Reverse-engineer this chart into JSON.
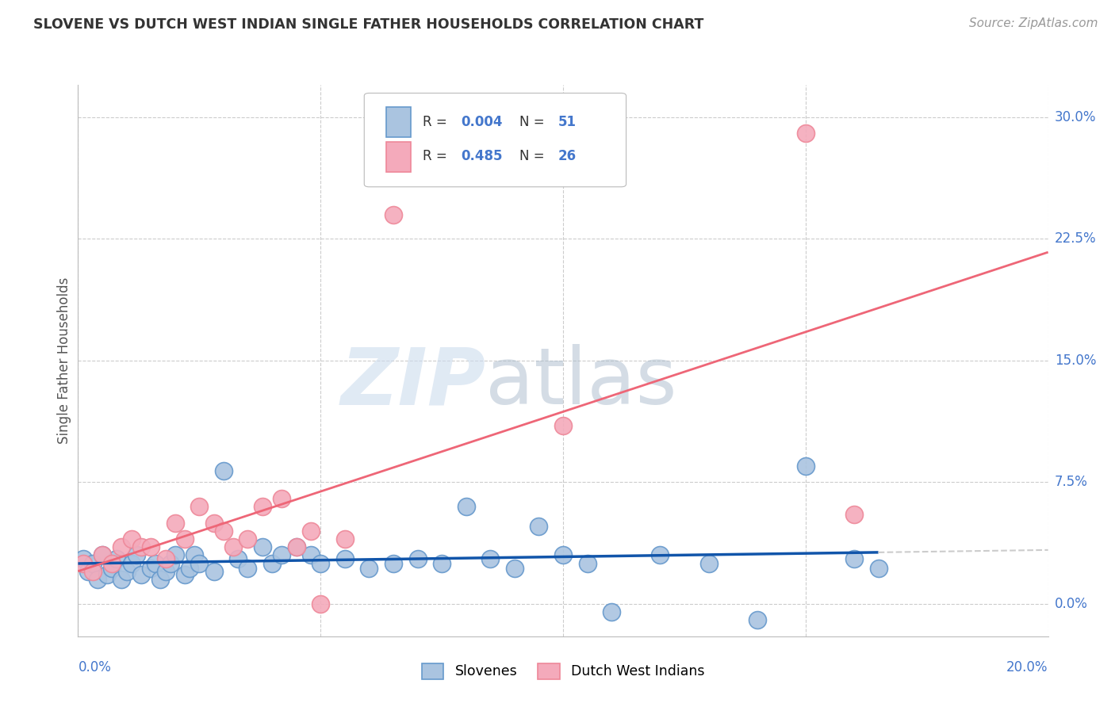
{
  "title": "SLOVENE VS DUTCH WEST INDIAN SINGLE FATHER HOUSEHOLDS CORRELATION CHART",
  "source": "Source: ZipAtlas.com",
  "ylabel": "Single Father Households",
  "ytick_labels": [
    "0.0%",
    "7.5%",
    "15.0%",
    "22.5%",
    "30.0%"
  ],
  "ytick_values": [
    0.0,
    0.075,
    0.15,
    0.225,
    0.3
  ],
  "xlim": [
    0.0,
    0.2
  ],
  "ylim": [
    -0.02,
    0.32
  ],
  "legend_slovene_r": "0.004",
  "legend_slovene_n": "51",
  "legend_dutch_r": "0.485",
  "legend_dutch_n": "26",
  "slovene_color": "#aac4e0",
  "dutch_color": "#f4aabb",
  "slovene_edge_color": "#6699cc",
  "dutch_edge_color": "#ee8899",
  "slovene_line_color": "#1155aa",
  "dutch_line_color": "#ee6677",
  "watermark_zip_color": "#ccdcee",
  "watermark_atlas_color": "#aabbcc",
  "background_color": "#ffffff",
  "grid_color": "#cccccc",
  "title_color": "#333333",
  "source_color": "#999999",
  "axis_label_color": "#555555",
  "tick_label_color": "#4477cc",
  "legend_r_color": "#4477cc",
  "legend_n_color": "#4477cc",
  "slovene_points_x": [
    0.001,
    0.002,
    0.003,
    0.004,
    0.005,
    0.006,
    0.007,
    0.008,
    0.009,
    0.01,
    0.011,
    0.012,
    0.013,
    0.015,
    0.016,
    0.017,
    0.018,
    0.019,
    0.02,
    0.022,
    0.023,
    0.024,
    0.025,
    0.028,
    0.03,
    0.033,
    0.035,
    0.038,
    0.04,
    0.042,
    0.045,
    0.048,
    0.05,
    0.055,
    0.06,
    0.065,
    0.07,
    0.075,
    0.08,
    0.085,
    0.09,
    0.095,
    0.1,
    0.105,
    0.11,
    0.12,
    0.13,
    0.14,
    0.15,
    0.16,
    0.165
  ],
  "slovene_points_y": [
    0.028,
    0.02,
    0.025,
    0.015,
    0.03,
    0.018,
    0.022,
    0.028,
    0.015,
    0.02,
    0.025,
    0.03,
    0.018,
    0.022,
    0.025,
    0.015,
    0.02,
    0.025,
    0.03,
    0.018,
    0.022,
    0.03,
    0.025,
    0.02,
    0.082,
    0.028,
    0.022,
    0.035,
    0.025,
    0.03,
    0.035,
    0.03,
    0.025,
    0.028,
    0.022,
    0.025,
    0.028,
    0.025,
    0.06,
    0.028,
    0.022,
    0.048,
    0.03,
    0.025,
    -0.005,
    0.03,
    0.025,
    -0.01,
    0.085,
    0.028,
    0.022
  ],
  "dutch_points_x": [
    0.001,
    0.003,
    0.005,
    0.007,
    0.009,
    0.011,
    0.013,
    0.015,
    0.018,
    0.02,
    0.022,
    0.025,
    0.028,
    0.03,
    0.032,
    0.035,
    0.038,
    0.042,
    0.045,
    0.048,
    0.05,
    0.055,
    0.065,
    0.1,
    0.15,
    0.16
  ],
  "dutch_points_y": [
    0.025,
    0.02,
    0.03,
    0.025,
    0.035,
    0.04,
    0.035,
    0.035,
    0.028,
    0.05,
    0.04,
    0.06,
    0.05,
    0.045,
    0.035,
    0.04,
    0.06,
    0.065,
    0.035,
    0.045,
    0.0,
    0.04,
    0.24,
    0.11,
    0.29,
    0.055
  ]
}
